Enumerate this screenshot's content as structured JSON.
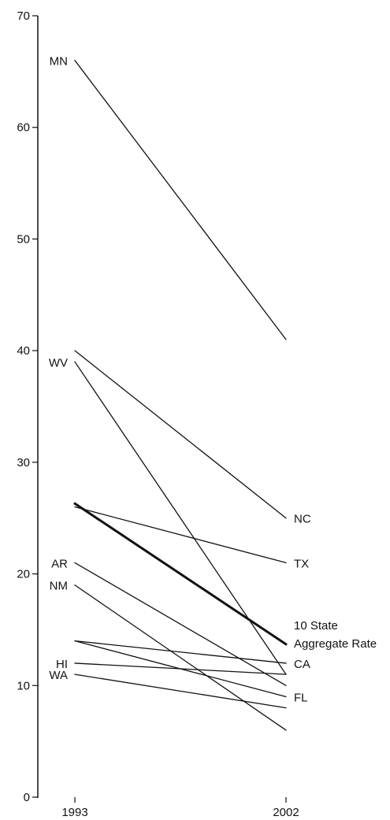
{
  "chart_data": {
    "type": "line",
    "title": "",
    "xlabel": "",
    "ylabel": "",
    "x": [
      "1993",
      "2002"
    ],
    "ylim": [
      0,
      70
    ],
    "yticks": [
      "0",
      "10",
      "20",
      "30",
      "40",
      "50",
      "60",
      "70"
    ],
    "grid": false,
    "legend": "none",
    "series": [
      {
        "name": "MN",
        "values": [
          66,
          41
        ],
        "label_side": "left",
        "emphasis": false
      },
      {
        "name": "NC",
        "values": [
          40,
          25
        ],
        "label_side": "right",
        "emphasis": false
      },
      {
        "name": "WV",
        "values": [
          39,
          11
        ],
        "label_side": "left",
        "emphasis": false
      },
      {
        "name": "10 State Aggregate Rate",
        "label_lines": [
          "10 State",
          "Aggregate Rate"
        ],
        "values": [
          26.3,
          13.7
        ],
        "label_side": "right",
        "emphasis": true
      },
      {
        "name": "TX",
        "values": [
          26,
          21
        ],
        "label_side": "right",
        "emphasis": false
      },
      {
        "name": "AR",
        "values": [
          21,
          10
        ],
        "label_side": "left",
        "emphasis": false
      },
      {
        "name": "NM",
        "values": [
          19,
          6
        ],
        "label_side": "left",
        "emphasis": false
      },
      {
        "name": "CA",
        "values": [
          14,
          12
        ],
        "label_side": "right",
        "emphasis": false
      },
      {
        "name": "FL",
        "values": [
          14,
          9
        ],
        "label_side": "right",
        "emphasis": false
      },
      {
        "name": "HI",
        "values": [
          12,
          11
        ],
        "label_side": "left",
        "emphasis": false
      },
      {
        "name": "WA",
        "values": [
          11,
          8
        ],
        "label_side": "left",
        "emphasis": false
      }
    ]
  }
}
